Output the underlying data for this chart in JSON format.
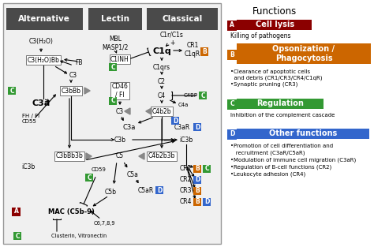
{
  "bg_color": "#ffffff",
  "panel_bg": "#eeeeee",
  "panel_border": "#888888",
  "badge_colors": {
    "A": "#8b0000",
    "B": "#cc6600",
    "C": "#339933",
    "D": "#3366cc"
  },
  "header_bg": "#4a4a4a",
  "header_color": "#ffffff",
  "functions_title": "Functions",
  "func_A_label": "Cell lysis",
  "func_A_desc": "Killing of pathogens",
  "func_B_label": "Opsonization /\nPhagocytosis",
  "func_B_desc1": "•Clearance of apoptotic cells",
  "func_B_desc2": "  and debris (CR1/CR3/CR4/C1qR)",
  "func_B_desc3": "•Synaptic pruning (CR3)",
  "func_C_label": "Regulation",
  "func_C_desc": "Inhibition of the complement cascade",
  "func_D_label": "Other functions",
  "func_D_desc1": "•Promotion of cell differentiation and",
  "func_D_desc2": "   recruitment (C3aR/C5aR)",
  "func_D_desc3": "•Modulation of immune cell migration (C3aR)",
  "func_D_desc4": "•Regulation of B-cell functions (CR2)",
  "func_D_desc5": "•Leukocyte adhesion (CR4)"
}
